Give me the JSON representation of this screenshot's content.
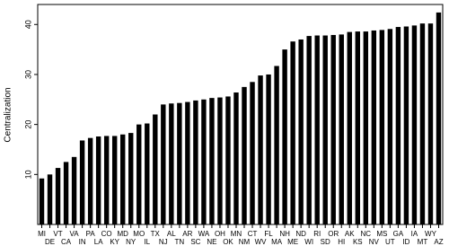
{
  "chart_data": {
    "type": "bar",
    "y_label": "Centralization",
    "categories": [
      "MI",
      "DE",
      "VT",
      "CA",
      "VA",
      "IN",
      "PA",
      "LA",
      "CO",
      "KY",
      "MD",
      "NY",
      "MO",
      "IL",
      "TX",
      "NJ",
      "AL",
      "TN",
      "AR",
      "SC",
      "WA",
      "NE",
      "OH",
      "OK",
      "MN",
      "NM",
      "CT",
      "WV",
      "FL",
      "MA",
      "NH",
      "ME",
      "ND",
      "WI",
      "RI",
      "SD",
      "OR",
      "HI",
      "AK",
      "KS",
      "NC",
      "NV",
      "MS",
      "UT",
      "GA",
      "ID",
      "IA",
      "MT",
      "WY",
      "AZ"
    ],
    "values": [
      9.2,
      10,
      11.3,
      12.5,
      13.5,
      16.8,
      17.3,
      17.6,
      17.7,
      17.7,
      18,
      18.3,
      20,
      20.2,
      22,
      24,
      24.2,
      24.3,
      24.5,
      24.8,
      25,
      25.3,
      25.4,
      25.6,
      26.4,
      27.5,
      28.5,
      29.8,
      30,
      31.7,
      35,
      36.6,
      37,
      37.7,
      37.8,
      37.8,
      37.9,
      38,
      38.5,
      38.6,
      38.6,
      38.8,
      38.9,
      39.1,
      39.5,
      39.6,
      39.8,
      40.2,
      40.2,
      42.4
    ],
    "color": "#000000",
    "ylim": [
      0,
      44
    ],
    "yticks": [
      10,
      20,
      30,
      40
    ],
    "grid": false
  }
}
